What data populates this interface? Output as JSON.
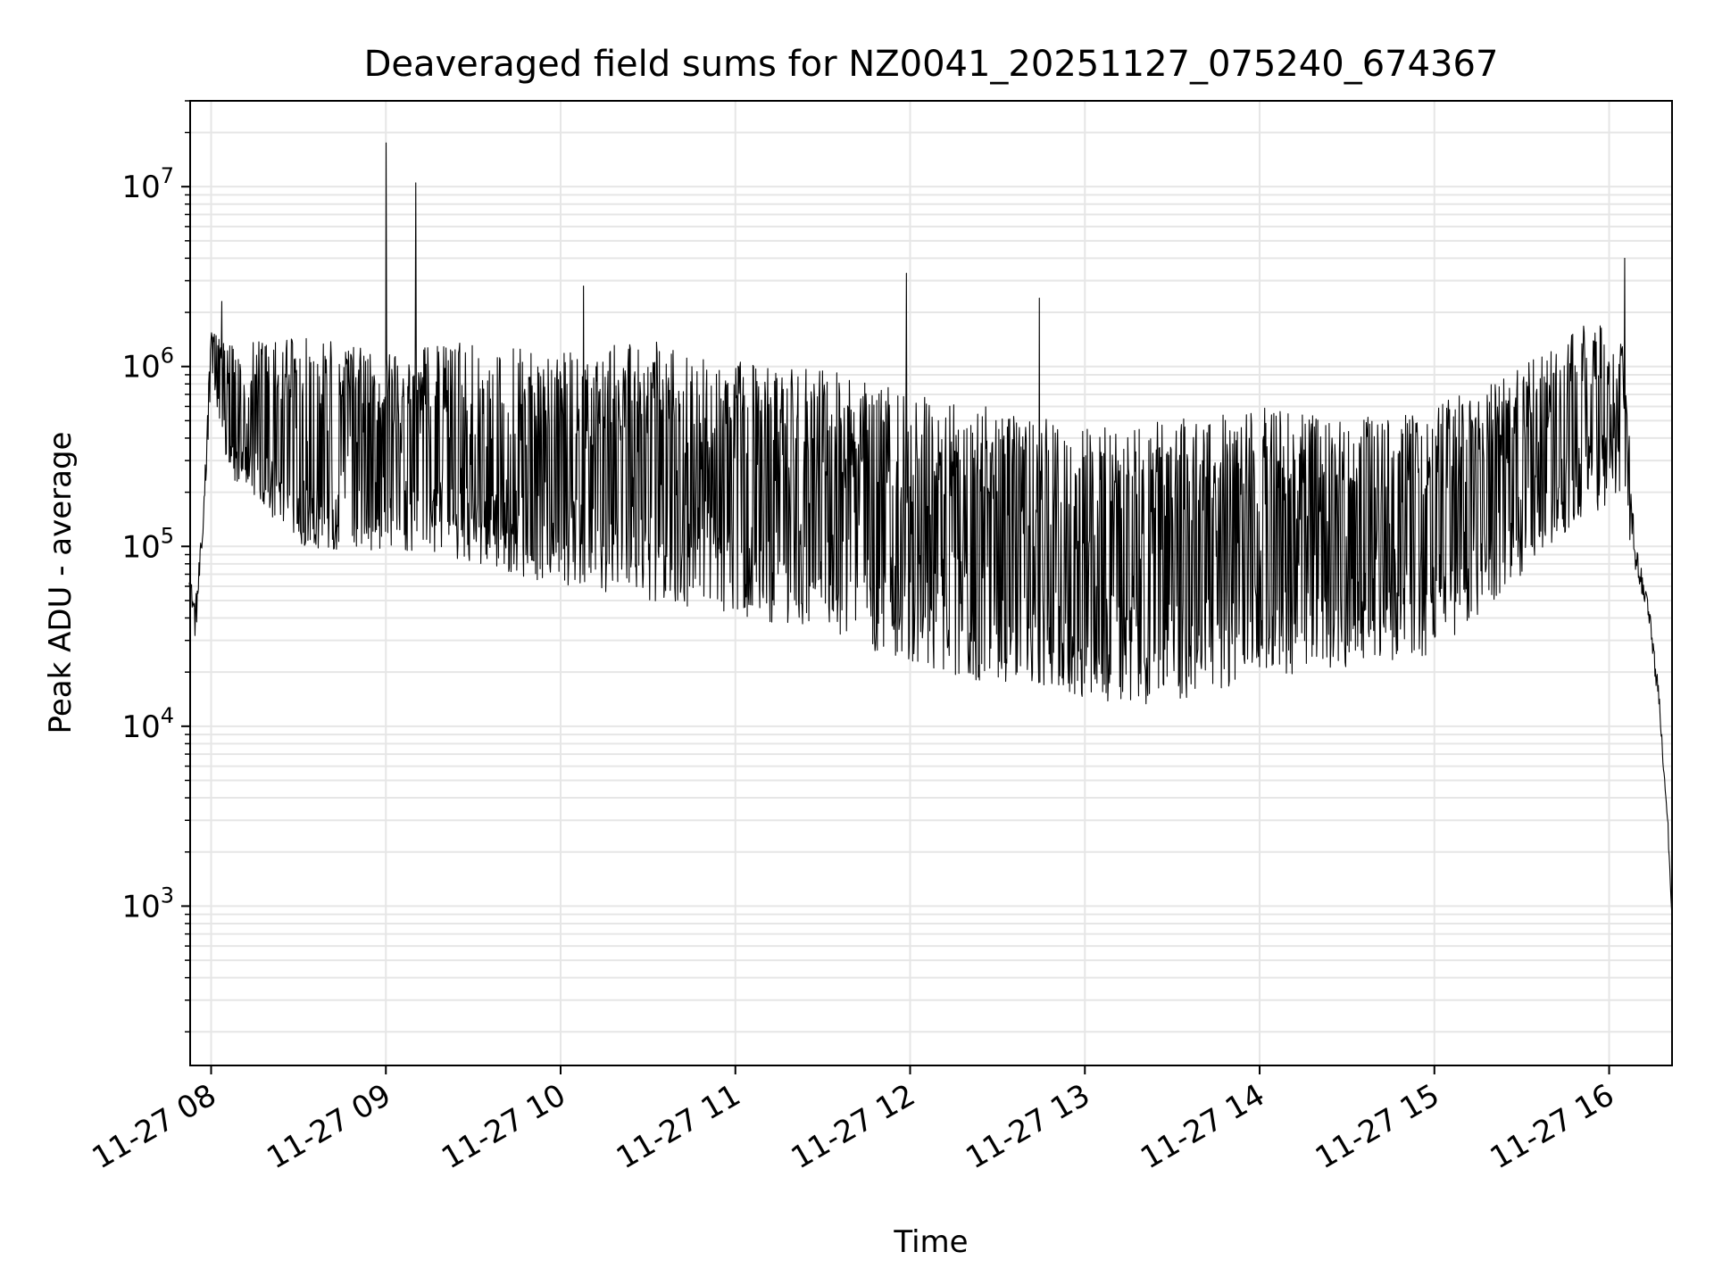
{
  "chart_data": {
    "type": "line",
    "title": "Deaveraged field sums for NZ0041_20251127_075240_674367",
    "xlabel": "Time",
    "ylabel": "Peak ADU - average",
    "yscale": "log",
    "xlim_hours": [
      7.88,
      16.36
    ],
    "ylim": [
      130,
      30000000
    ],
    "grid": true,
    "x_ticks": [
      {
        "hour": 8,
        "label": "11-27 08"
      },
      {
        "hour": 9,
        "label": "11-27 09"
      },
      {
        "hour": 10,
        "label": "11-27 10"
      },
      {
        "hour": 11,
        "label": "11-27 11"
      },
      {
        "hour": 12,
        "label": "11-27 12"
      },
      {
        "hour": 13,
        "label": "11-27 13"
      },
      {
        "hour": 14,
        "label": "11-27 14"
      },
      {
        "hour": 15,
        "label": "11-27 15"
      },
      {
        "hour": 16,
        "label": "11-27 16"
      }
    ],
    "y_ticks": [
      {
        "value": 1000,
        "base": "10",
        "exp": "3"
      },
      {
        "value": 10000,
        "base": "10",
        "exp": "4"
      },
      {
        "value": 100000,
        "base": "10",
        "exp": "5"
      },
      {
        "value": 1000000,
        "base": "10",
        "exp": "6"
      },
      {
        "value": 10000000,
        "base": "10",
        "exp": "7"
      }
    ],
    "series": [
      {
        "name": "Peak ADU - average",
        "color": "#000000",
        "noise_seed": 12345,
        "start_hour": 7.875,
        "end_hour": 16.36,
        "n_points": 2600,
        "envelope": [
          {
            "hour": 7.875,
            "upper": 75000,
            "lower": 60000
          },
          {
            "hour": 7.91,
            "upper": 60000,
            "lower": 25000
          },
          {
            "hour": 7.95,
            "upper": 150000,
            "lower": 80000
          },
          {
            "hour": 8.0,
            "upper": 1700000,
            "lower": 900000
          },
          {
            "hour": 8.1,
            "upper": 1300000,
            "lower": 250000
          },
          {
            "hour": 8.5,
            "upper": 1500000,
            "lower": 100000
          },
          {
            "hour": 9.0,
            "upper": 1200000,
            "lower": 90000
          },
          {
            "hour": 9.5,
            "upper": 1400000,
            "lower": 80000
          },
          {
            "hour": 10.0,
            "upper": 1200000,
            "lower": 60000
          },
          {
            "hour": 10.5,
            "upper": 1400000,
            "lower": 50000
          },
          {
            "hour": 11.0,
            "upper": 1100000,
            "lower": 40000
          },
          {
            "hour": 11.5,
            "upper": 1000000,
            "lower": 35000
          },
          {
            "hour": 12.0,
            "upper": 700000,
            "lower": 20000
          },
          {
            "hour": 12.5,
            "upper": 600000,
            "lower": 17000
          },
          {
            "hour": 13.0,
            "upper": 450000,
            "lower": 14000
          },
          {
            "hour": 13.5,
            "upper": 500000,
            "lower": 13000
          },
          {
            "hour": 14.0,
            "upper": 600000,
            "lower": 18000
          },
          {
            "hour": 14.5,
            "upper": 500000,
            "lower": 20000
          },
          {
            "hour": 15.0,
            "upper": 600000,
            "lower": 25000
          },
          {
            "hour": 15.5,
            "upper": 1000000,
            "lower": 70000
          },
          {
            "hour": 15.9,
            "upper": 1800000,
            "lower": 150000
          },
          {
            "hour": 16.08,
            "upper": 1500000,
            "lower": 200000
          },
          {
            "hour": 16.15,
            "upper": 120000,
            "lower": 60000
          },
          {
            "hour": 16.22,
            "upper": 60000,
            "lower": 40000
          },
          {
            "hour": 16.28,
            "upper": 20000,
            "lower": 12000
          },
          {
            "hour": 16.33,
            "upper": 5000,
            "lower": 3000
          },
          {
            "hour": 16.36,
            "upper": 900,
            "lower": 800
          }
        ],
        "spikes": [
          {
            "hour": 9.0,
            "value": 17500000
          },
          {
            "hour": 9.17,
            "value": 10500000
          },
          {
            "hour": 10.13,
            "value": 2800000
          },
          {
            "hour": 11.98,
            "value": 3300000
          },
          {
            "hour": 12.74,
            "value": 2400000
          },
          {
            "hour": 16.09,
            "value": 4000000
          },
          {
            "hour": 8.06,
            "value": 2300000
          }
        ]
      }
    ]
  }
}
